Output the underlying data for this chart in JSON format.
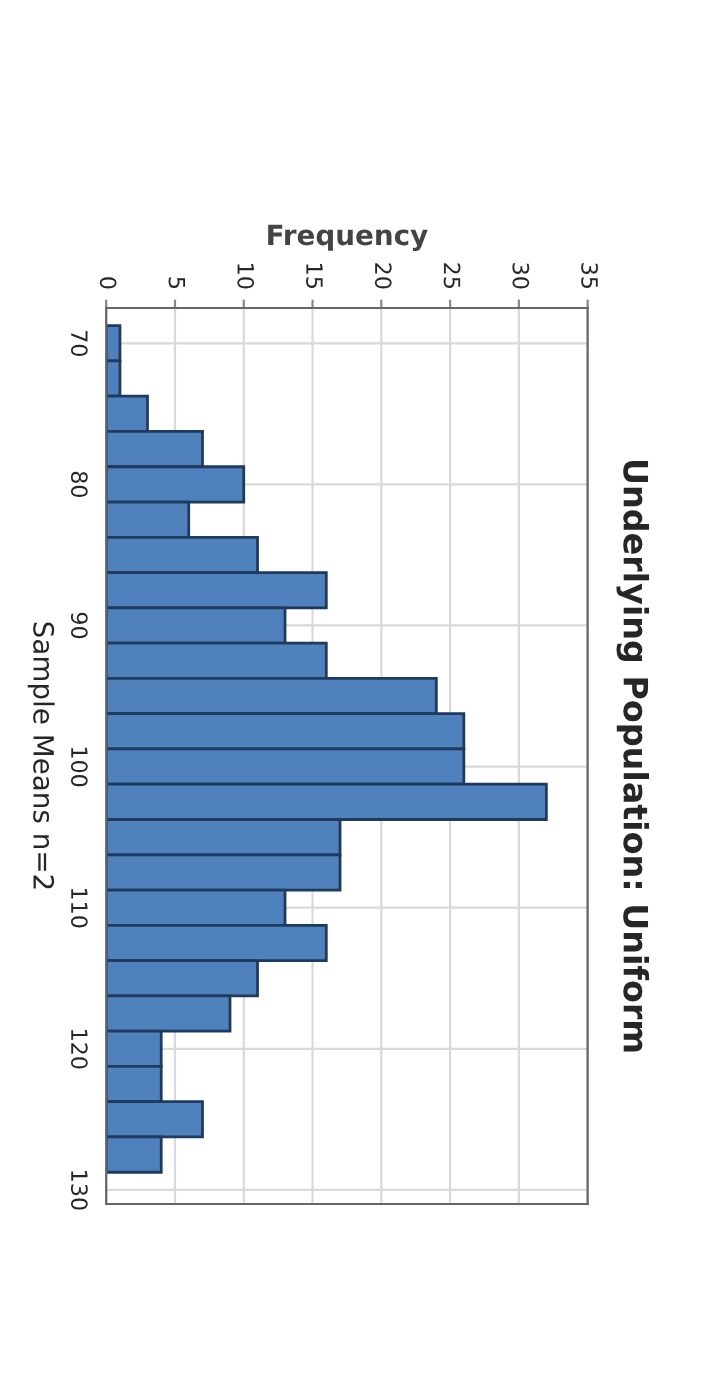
{
  "chart_data": {
    "type": "histogram",
    "title": "Underlying Population: Uniform",
    "xlabel": "Frequency",
    "ylabel": "Sample Means n=2",
    "orientation": "horizontal",
    "bins": [
      68.75,
      71.25,
      73.75,
      76.25,
      78.75,
      81.25,
      83.75,
      86.25,
      88.75,
      91.25,
      93.75,
      96.25,
      98.75,
      101.25,
      103.75,
      106.25,
      108.75,
      111.25,
      113.75,
      116.25,
      118.75,
      121.25,
      123.75,
      126.25,
      128.75
    ],
    "values": [
      1,
      1,
      3,
      7,
      10,
      6,
      11,
      16,
      13,
      16,
      24,
      26,
      26,
      32,
      17,
      17,
      13,
      16,
      11,
      9,
      4,
      4,
      7,
      4
    ],
    "color": "#4f81bd",
    "xlim": [
      0,
      35
    ],
    "xticks": [
      0,
      5,
      10,
      15,
      20,
      25,
      30,
      35
    ],
    "ylim": [
      131,
      67.5
    ],
    "yticks": [
      70,
      80,
      90,
      100,
      110,
      120,
      130
    ],
    "grid": true
  }
}
